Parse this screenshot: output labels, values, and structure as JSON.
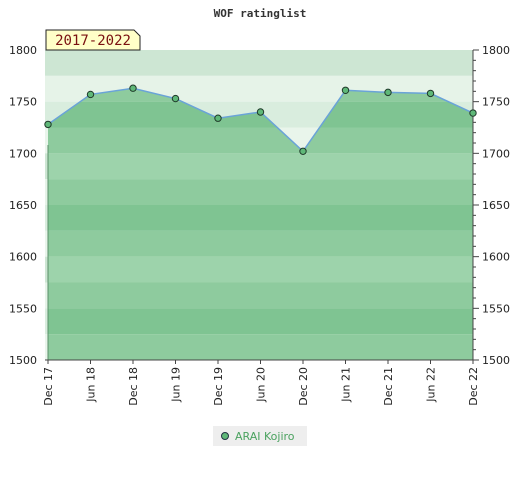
{
  "chart_data": {
    "type": "area",
    "title": "WOF ratinglist",
    "badge": "2017-2022",
    "categories": [
      "Dec 17",
      "Jun 18",
      "Dec 18",
      "Jun 19",
      "Dec 19",
      "Jun 20",
      "Dec 20",
      "Jun 21",
      "Dec 21",
      "Jun 22",
      "Dec 22"
    ],
    "series": [
      {
        "name": "ARAI Kojiro",
        "values": [
          1728,
          1757,
          1763,
          1753,
          1734,
          1740,
          1702,
          1761,
          1759,
          1758,
          1739
        ]
      }
    ],
    "ylim": [
      1500,
      1800
    ],
    "yticks": [
      1500,
      1550,
      1600,
      1650,
      1700,
      1750,
      1800
    ],
    "grid": true,
    "legend_position": "bottom-center",
    "colors": {
      "line": "#6aa3d8",
      "marker": "#5fb878",
      "fill": "#8cc99b"
    }
  }
}
